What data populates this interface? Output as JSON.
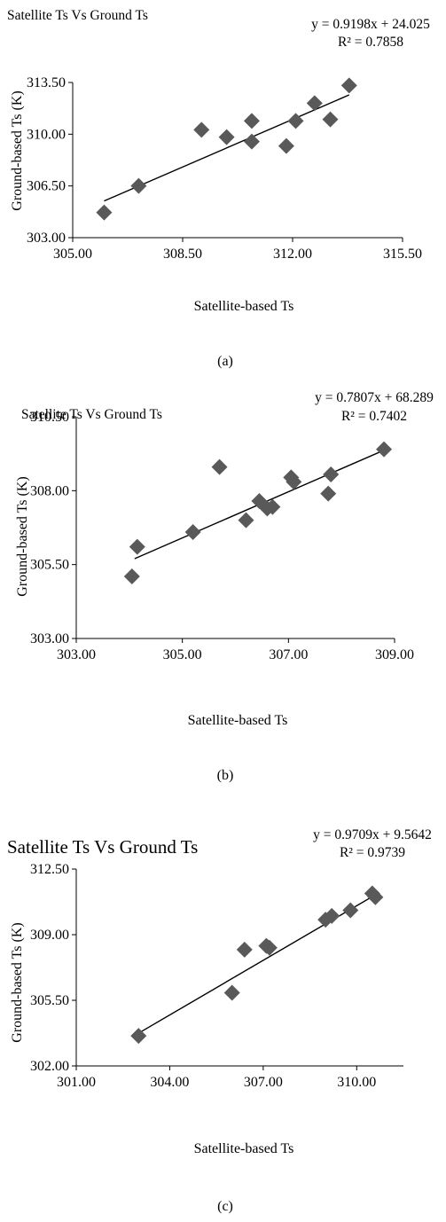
{
  "chart_data": [
    {
      "type": "scatter",
      "title": "Satellite Ts Vs Ground Ts",
      "xlabel": "Satellite-based Ts",
      "ylabel": "Ground-based Ts (K)",
      "equation": "y = 0.9198x + 24.025",
      "r2": "R² = 0.7858",
      "caption": "(a)",
      "xlim": [
        305.0,
        315.5
      ],
      "ylim": [
        303.0,
        313.5
      ],
      "xticks": [
        "305.00",
        "308.50",
        "312.00",
        "315.50"
      ],
      "yticks": [
        "303.00",
        "306.50",
        "310.00",
        "313.50"
      ],
      "marker_color": "#595959",
      "x": [
        306.0,
        307.1,
        309.1,
        309.9,
        310.7,
        310.7,
        311.8,
        312.1,
        312.7,
        313.2,
        313.8
      ],
      "y": [
        304.7,
        306.5,
        310.3,
        309.8,
        309.5,
        310.9,
        309.2,
        310.9,
        312.1,
        311.0,
        313.3
      ],
      "trendline": {
        "slope": 0.9198,
        "intercept": 24.025,
        "x_range": [
          306.0,
          313.8
        ]
      }
    },
    {
      "type": "scatter",
      "title": "Satellite Ts Vs Ground Ts",
      "xlabel": "Satellite-based Ts",
      "ylabel": "Ground-based Ts  (K)",
      "equation": "y = 0.7807x + 68.289",
      "r2": "R² = 0.7402",
      "caption": "(b)",
      "xlim": [
        303.0,
        309.0
      ],
      "ylim": [
        303.0,
        310.5
      ],
      "xticks": [
        "303.00",
        "305.00",
        "307.00",
        "309.00"
      ],
      "yticks": [
        "303.00",
        "305.50",
        "308.00",
        "310.50"
      ],
      "marker_color": "#595959",
      "x": [
        304.05,
        304.15,
        305.2,
        305.7,
        306.2,
        306.45,
        306.6,
        306.7,
        307.05,
        307.1,
        307.75,
        307.8,
        308.8
      ],
      "y": [
        305.1,
        306.1,
        306.6,
        308.8,
        307.0,
        307.65,
        307.4,
        307.45,
        308.45,
        308.3,
        307.9,
        308.55,
        309.4
      ],
      "trendline": {
        "slope": 0.7807,
        "intercept": 68.289,
        "x_range": [
          304.1,
          308.8
        ]
      }
    },
    {
      "type": "scatter",
      "title": "Satellite Ts Vs Ground Ts",
      "xlabel": "Satellite-based Ts",
      "ylabel": "Ground-based Ts (K)",
      "equation": "y = 0.9709x + 9.5642",
      "r2": "R² = 0.9739",
      "caption": "(c)",
      "xlim": [
        301.0,
        311.5
      ],
      "ylim": [
        302.0,
        312.5
      ],
      "xticks": [
        "301.00",
        "304.00",
        "307.00",
        "310.00"
      ],
      "yticks": [
        "302.00",
        "305.50",
        "309.00",
        "312.50"
      ],
      "marker_color": "#595959",
      "x": [
        303.0,
        306.0,
        306.4,
        307.1,
        307.2,
        309.0,
        309.2,
        309.8,
        310.5,
        310.6
      ],
      "y": [
        303.6,
        305.9,
        308.2,
        308.4,
        308.3,
        309.8,
        310.0,
        310.3,
        311.2,
        311.0
      ],
      "trendline": {
        "slope": 0.9709,
        "intercept": 9.5642,
        "x_range": [
          303.0,
          310.6
        ]
      }
    }
  ]
}
